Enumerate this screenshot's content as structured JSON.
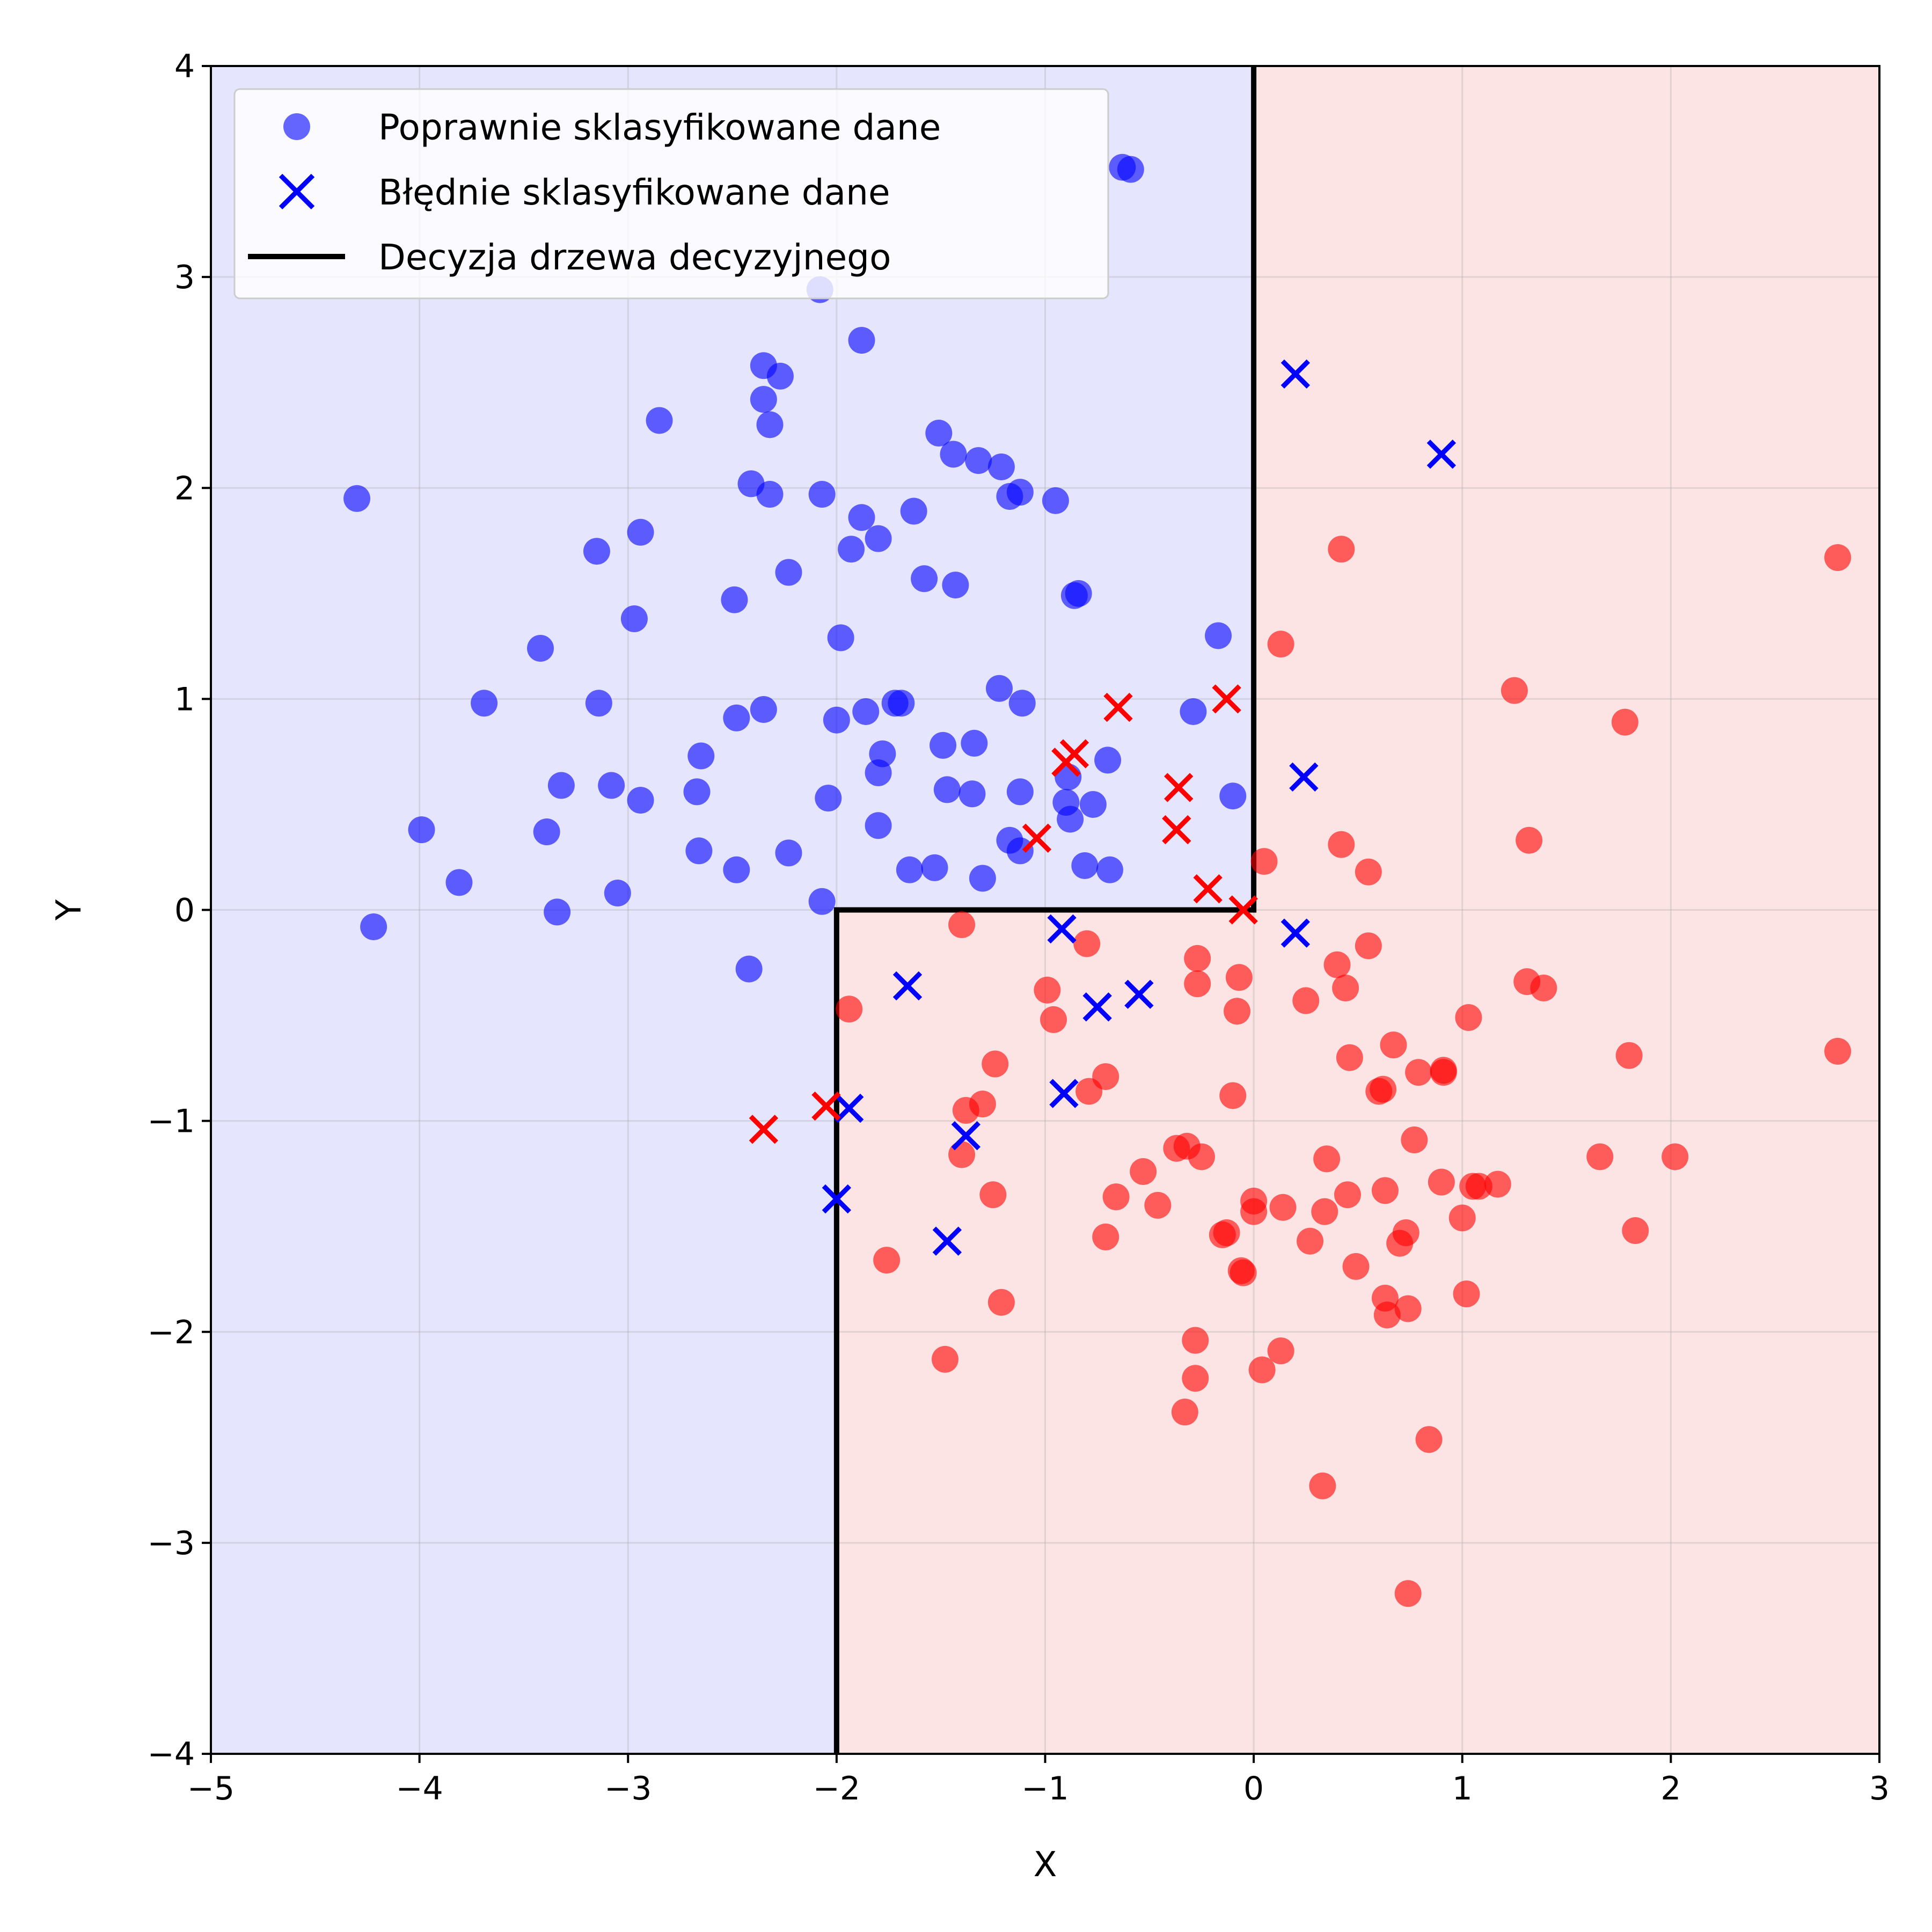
{
  "chart_data": {
    "type": "scatter",
    "title": "",
    "xlabel": "X",
    "ylabel": "Y",
    "xlim": [
      -5,
      3
    ],
    "ylim": [
      -4,
      4
    ],
    "xticks": [
      -5,
      -4,
      -3,
      -2,
      -1,
      0,
      1,
      2,
      3
    ],
    "yticks": [
      -4,
      -3,
      -2,
      -1,
      0,
      1,
      2,
      3,
      4
    ],
    "xtick_labels": [
      "−5",
      "−4",
      "−3",
      "−2",
      "−1",
      "0",
      "1",
      "2",
      "3"
    ],
    "ytick_labels": [
      "−4",
      "−3",
      "−2",
      "−1",
      "0",
      "1",
      "2",
      "3",
      "4"
    ],
    "grid": true,
    "legend_position": "top-left",
    "colors": {
      "class_a": "#0000ff",
      "class_b": "#ff0000",
      "region_a": "#e5e5fd",
      "region_b": "#fde4e4",
      "boundary": "#000000"
    },
    "legend": [
      {
        "label": "Poprawnie sklasyfikowane dane",
        "marker": "circle"
      },
      {
        "label": "Błędnie sklasyfikowane dane",
        "marker": "x"
      },
      {
        "label": "Decyzja drzewa decyzyjnego",
        "marker": "line"
      }
    ],
    "regions": [
      {
        "class": "a",
        "polygon": [
          [
            -5,
            -4
          ],
          [
            -2,
            -4
          ],
          [
            -2,
            0
          ],
          [
            0,
            0
          ],
          [
            0,
            4
          ],
          [
            -5,
            4
          ]
        ]
      },
      {
        "class": "b",
        "polygon": [
          [
            -2,
            -4
          ],
          [
            3,
            -4
          ],
          [
            3,
            4
          ],
          [
            0,
            4
          ],
          [
            0,
            0
          ],
          [
            -2,
            0
          ]
        ]
      }
    ],
    "decision_boundary": [
      [
        -2,
        -4
      ],
      [
        -2,
        0
      ],
      [
        0,
        0
      ],
      [
        0,
        4
      ]
    ],
    "series": [
      {
        "name": "Poprawnie sklasyfikowane dane (klasa A)",
        "marker": "circle",
        "color": "#0000ff",
        "points": [
          [
            -4.3,
            1.95
          ],
          [
            -4.22,
            -0.08
          ],
          [
            -3.99,
            0.38
          ],
          [
            -3.81,
            0.13
          ],
          [
            -3.69,
            0.98
          ],
          [
            -3.42,
            1.24
          ],
          [
            -3.39,
            0.37
          ],
          [
            -3.34,
            -0.01
          ],
          [
            -3.32,
            0.59
          ],
          [
            -3.15,
            1.7
          ],
          [
            -3.14,
            0.98
          ],
          [
            -3.08,
            0.59
          ],
          [
            -3.05,
            0.08
          ],
          [
            -2.97,
            1.38
          ],
          [
            -2.94,
            1.79
          ],
          [
            -2.94,
            0.52
          ],
          [
            -2.85,
            2.32
          ],
          [
            -2.67,
            0.56
          ],
          [
            -2.66,
            0.28
          ],
          [
            -2.65,
            0.73
          ],
          [
            -2.49,
            1.47
          ],
          [
            -2.48,
            0.91
          ],
          [
            -2.48,
            0.19
          ],
          [
            -2.42,
            -0.28
          ],
          [
            -2.41,
            2.02
          ],
          [
            -2.35,
            2.58
          ],
          [
            -2.35,
            2.42
          ],
          [
            -2.35,
            0.95
          ],
          [
            -2.32,
            2.3
          ],
          [
            -2.32,
            1.97
          ],
          [
            -2.27,
            2.53
          ],
          [
            -2.23,
            1.6
          ],
          [
            -2.23,
            0.27
          ],
          [
            -2.08,
            2.94
          ],
          [
            -2.07,
            1.97
          ],
          [
            -2.07,
            0.04
          ],
          [
            -2.04,
            0.53
          ],
          [
            -2.0,
            0.9
          ],
          [
            -1.98,
            1.29
          ],
          [
            -1.93,
            1.71
          ],
          [
            -1.88,
            2.7
          ],
          [
            -1.88,
            1.86
          ],
          [
            -1.86,
            0.94
          ],
          [
            -1.8,
            1.76
          ],
          [
            -1.8,
            0.65
          ],
          [
            -1.8,
            0.4
          ],
          [
            -1.78,
            0.74
          ],
          [
            -1.72,
            0.98
          ],
          [
            -1.69,
            0.98
          ],
          [
            -1.65,
            0.19
          ],
          [
            -1.63,
            1.89
          ],
          [
            -1.58,
            1.57
          ],
          [
            -1.53,
            0.2
          ],
          [
            -1.51,
            2.26
          ],
          [
            -1.49,
            0.78
          ],
          [
            -1.47,
            0.57
          ],
          [
            -1.44,
            2.16
          ],
          [
            -1.43,
            1.54
          ],
          [
            -1.35,
            0.55
          ],
          [
            -1.34,
            0.79
          ],
          [
            -1.32,
            2.13
          ],
          [
            -1.3,
            0.15
          ],
          [
            -1.22,
            1.05
          ],
          [
            -1.21,
            2.1
          ],
          [
            -1.17,
            1.96
          ],
          [
            -1.17,
            0.33
          ],
          [
            -1.12,
            1.98
          ],
          [
            -1.12,
            0.56
          ],
          [
            -1.12,
            0.28
          ],
          [
            -1.11,
            0.98
          ],
          [
            -0.95,
            1.94
          ],
          [
            -0.9,
            0.51
          ],
          [
            -0.89,
            0.63
          ],
          [
            -0.88,
            0.43
          ],
          [
            -0.86,
            1.49
          ],
          [
            -0.84,
            1.5
          ],
          [
            -0.81,
            0.21
          ],
          [
            -0.77,
            0.5
          ],
          [
            -0.7,
            0.71
          ],
          [
            -0.69,
            0.19
          ],
          [
            -0.63,
            3.52
          ],
          [
            -0.59,
            3.51
          ],
          [
            -0.29,
            0.94
          ],
          [
            -0.17,
            1.3
          ],
          [
            -0.1,
            0.54
          ]
        ]
      },
      {
        "name": "Poprawnie sklasyfikowane dane (klasa B)",
        "marker": "circle",
        "color": "#ff0000",
        "points": [
          [
            -1.94,
            -0.47
          ],
          [
            -1.76,
            -1.66
          ],
          [
            -1.48,
            -2.13
          ],
          [
            -1.4,
            -0.07
          ],
          [
            -1.4,
            -1.16
          ],
          [
            -1.38,
            -0.95
          ],
          [
            -1.3,
            -0.92
          ],
          [
            -1.25,
            -1.35
          ],
          [
            -1.24,
            -0.73
          ],
          [
            -1.21,
            -1.86
          ],
          [
            -0.99,
            -0.38
          ],
          [
            -0.96,
            -0.52
          ],
          [
            -0.8,
            -0.16
          ],
          [
            -0.79,
            -0.86
          ],
          [
            -0.71,
            -0.79
          ],
          [
            -0.71,
            -1.55
          ],
          [
            -0.66,
            -1.36
          ],
          [
            -0.53,
            -1.24
          ],
          [
            -0.46,
            -1.4
          ],
          [
            -0.37,
            -1.13
          ],
          [
            -0.33,
            -2.38
          ],
          [
            -0.32,
            -1.12
          ],
          [
            -0.28,
            -2.04
          ],
          [
            -0.28,
            -2.22
          ],
          [
            -0.27,
            -0.23
          ],
          [
            -0.27,
            -0.35
          ],
          [
            -0.25,
            -1.17
          ],
          [
            -0.15,
            -1.54
          ],
          [
            -0.13,
            -1.53
          ],
          [
            -0.1,
            -0.88
          ],
          [
            -0.08,
            -0.48
          ],
          [
            -0.07,
            -0.32
          ],
          [
            -0.06,
            -1.71
          ],
          [
            -0.05,
            -1.72
          ],
          [
            0.0,
            -1.38
          ],
          [
            0.0,
            -1.43
          ],
          [
            0.04,
            -2.18
          ],
          [
            0.05,
            0.23
          ],
          [
            0.13,
            1.26
          ],
          [
            0.13,
            -2.09
          ],
          [
            0.14,
            -1.41
          ],
          [
            0.25,
            -0.43
          ],
          [
            0.27,
            -1.57
          ],
          [
            0.33,
            -2.73
          ],
          [
            0.34,
            -1.43
          ],
          [
            0.35,
            -1.18
          ],
          [
            0.4,
            -0.26
          ],
          [
            0.42,
            1.71
          ],
          [
            0.42,
            0.31
          ],
          [
            0.44,
            -0.37
          ],
          [
            0.45,
            -1.35
          ],
          [
            0.46,
            -0.7
          ],
          [
            0.49,
            -1.69
          ],
          [
            0.55,
            0.18
          ],
          [
            0.55,
            -0.17
          ],
          [
            0.6,
            -0.86
          ],
          [
            0.62,
            -0.85
          ],
          [
            0.63,
            -1.84
          ],
          [
            0.63,
            -1.33
          ],
          [
            0.64,
            -1.92
          ],
          [
            0.67,
            -0.64
          ],
          [
            0.7,
            -1.58
          ],
          [
            0.73,
            -1.53
          ],
          [
            0.74,
            -1.89
          ],
          [
            0.74,
            -3.24
          ],
          [
            0.77,
            -1.09
          ],
          [
            0.79,
            -0.77
          ],
          [
            0.84,
            -2.51
          ],
          [
            0.9,
            -1.29
          ],
          [
            0.91,
            -0.77
          ],
          [
            0.91,
            -0.76
          ],
          [
            1.0,
            -1.46
          ],
          [
            1.02,
            -1.82
          ],
          [
            1.03,
            -0.51
          ],
          [
            1.05,
            -1.31
          ],
          [
            1.08,
            -1.31
          ],
          [
            1.17,
            -1.3
          ],
          [
            1.25,
            1.04
          ],
          [
            1.31,
            -0.34
          ],
          [
            1.32,
            0.33
          ],
          [
            1.39,
            -0.37
          ],
          [
            1.66,
            -1.17
          ],
          [
            1.78,
            0.89
          ],
          [
            1.8,
            -0.69
          ],
          [
            1.83,
            -1.52
          ],
          [
            2.02,
            -1.17
          ],
          [
            2.8,
            1.67
          ],
          [
            2.8,
            -0.67
          ]
        ]
      },
      {
        "name": "Błędnie sklasyfikowane dane (klasa A)",
        "marker": "x",
        "color": "#0000ff",
        "points": [
          [
            -2.0,
            -1.37
          ],
          [
            -1.94,
            -0.94
          ],
          [
            -1.66,
            -0.36
          ],
          [
            -1.47,
            -1.57
          ],
          [
            -1.38,
            -1.07
          ],
          [
            -0.92,
            -0.09
          ],
          [
            -0.91,
            -0.87
          ],
          [
            -0.75,
            -0.46
          ],
          [
            -0.55,
            -0.4
          ],
          [
            0.2,
            2.54
          ],
          [
            0.2,
            -0.11
          ],
          [
            0.24,
            0.63
          ],
          [
            0.9,
            2.16
          ]
        ]
      },
      {
        "name": "Błędnie sklasyfikowane dane (klasa B)",
        "marker": "x",
        "color": "#ff0000",
        "points": [
          [
            -2.35,
            -1.04
          ],
          [
            -2.05,
            -0.93
          ],
          [
            -1.04,
            0.34
          ],
          [
            -0.9,
            0.7
          ],
          [
            -0.86,
            0.74
          ],
          [
            -0.65,
            0.96
          ],
          [
            -0.36,
            0.58
          ],
          [
            -0.37,
            0.38
          ],
          [
            -0.22,
            0.1
          ],
          [
            -0.13,
            1.0
          ],
          [
            -0.05,
            0.0
          ]
        ]
      }
    ]
  }
}
